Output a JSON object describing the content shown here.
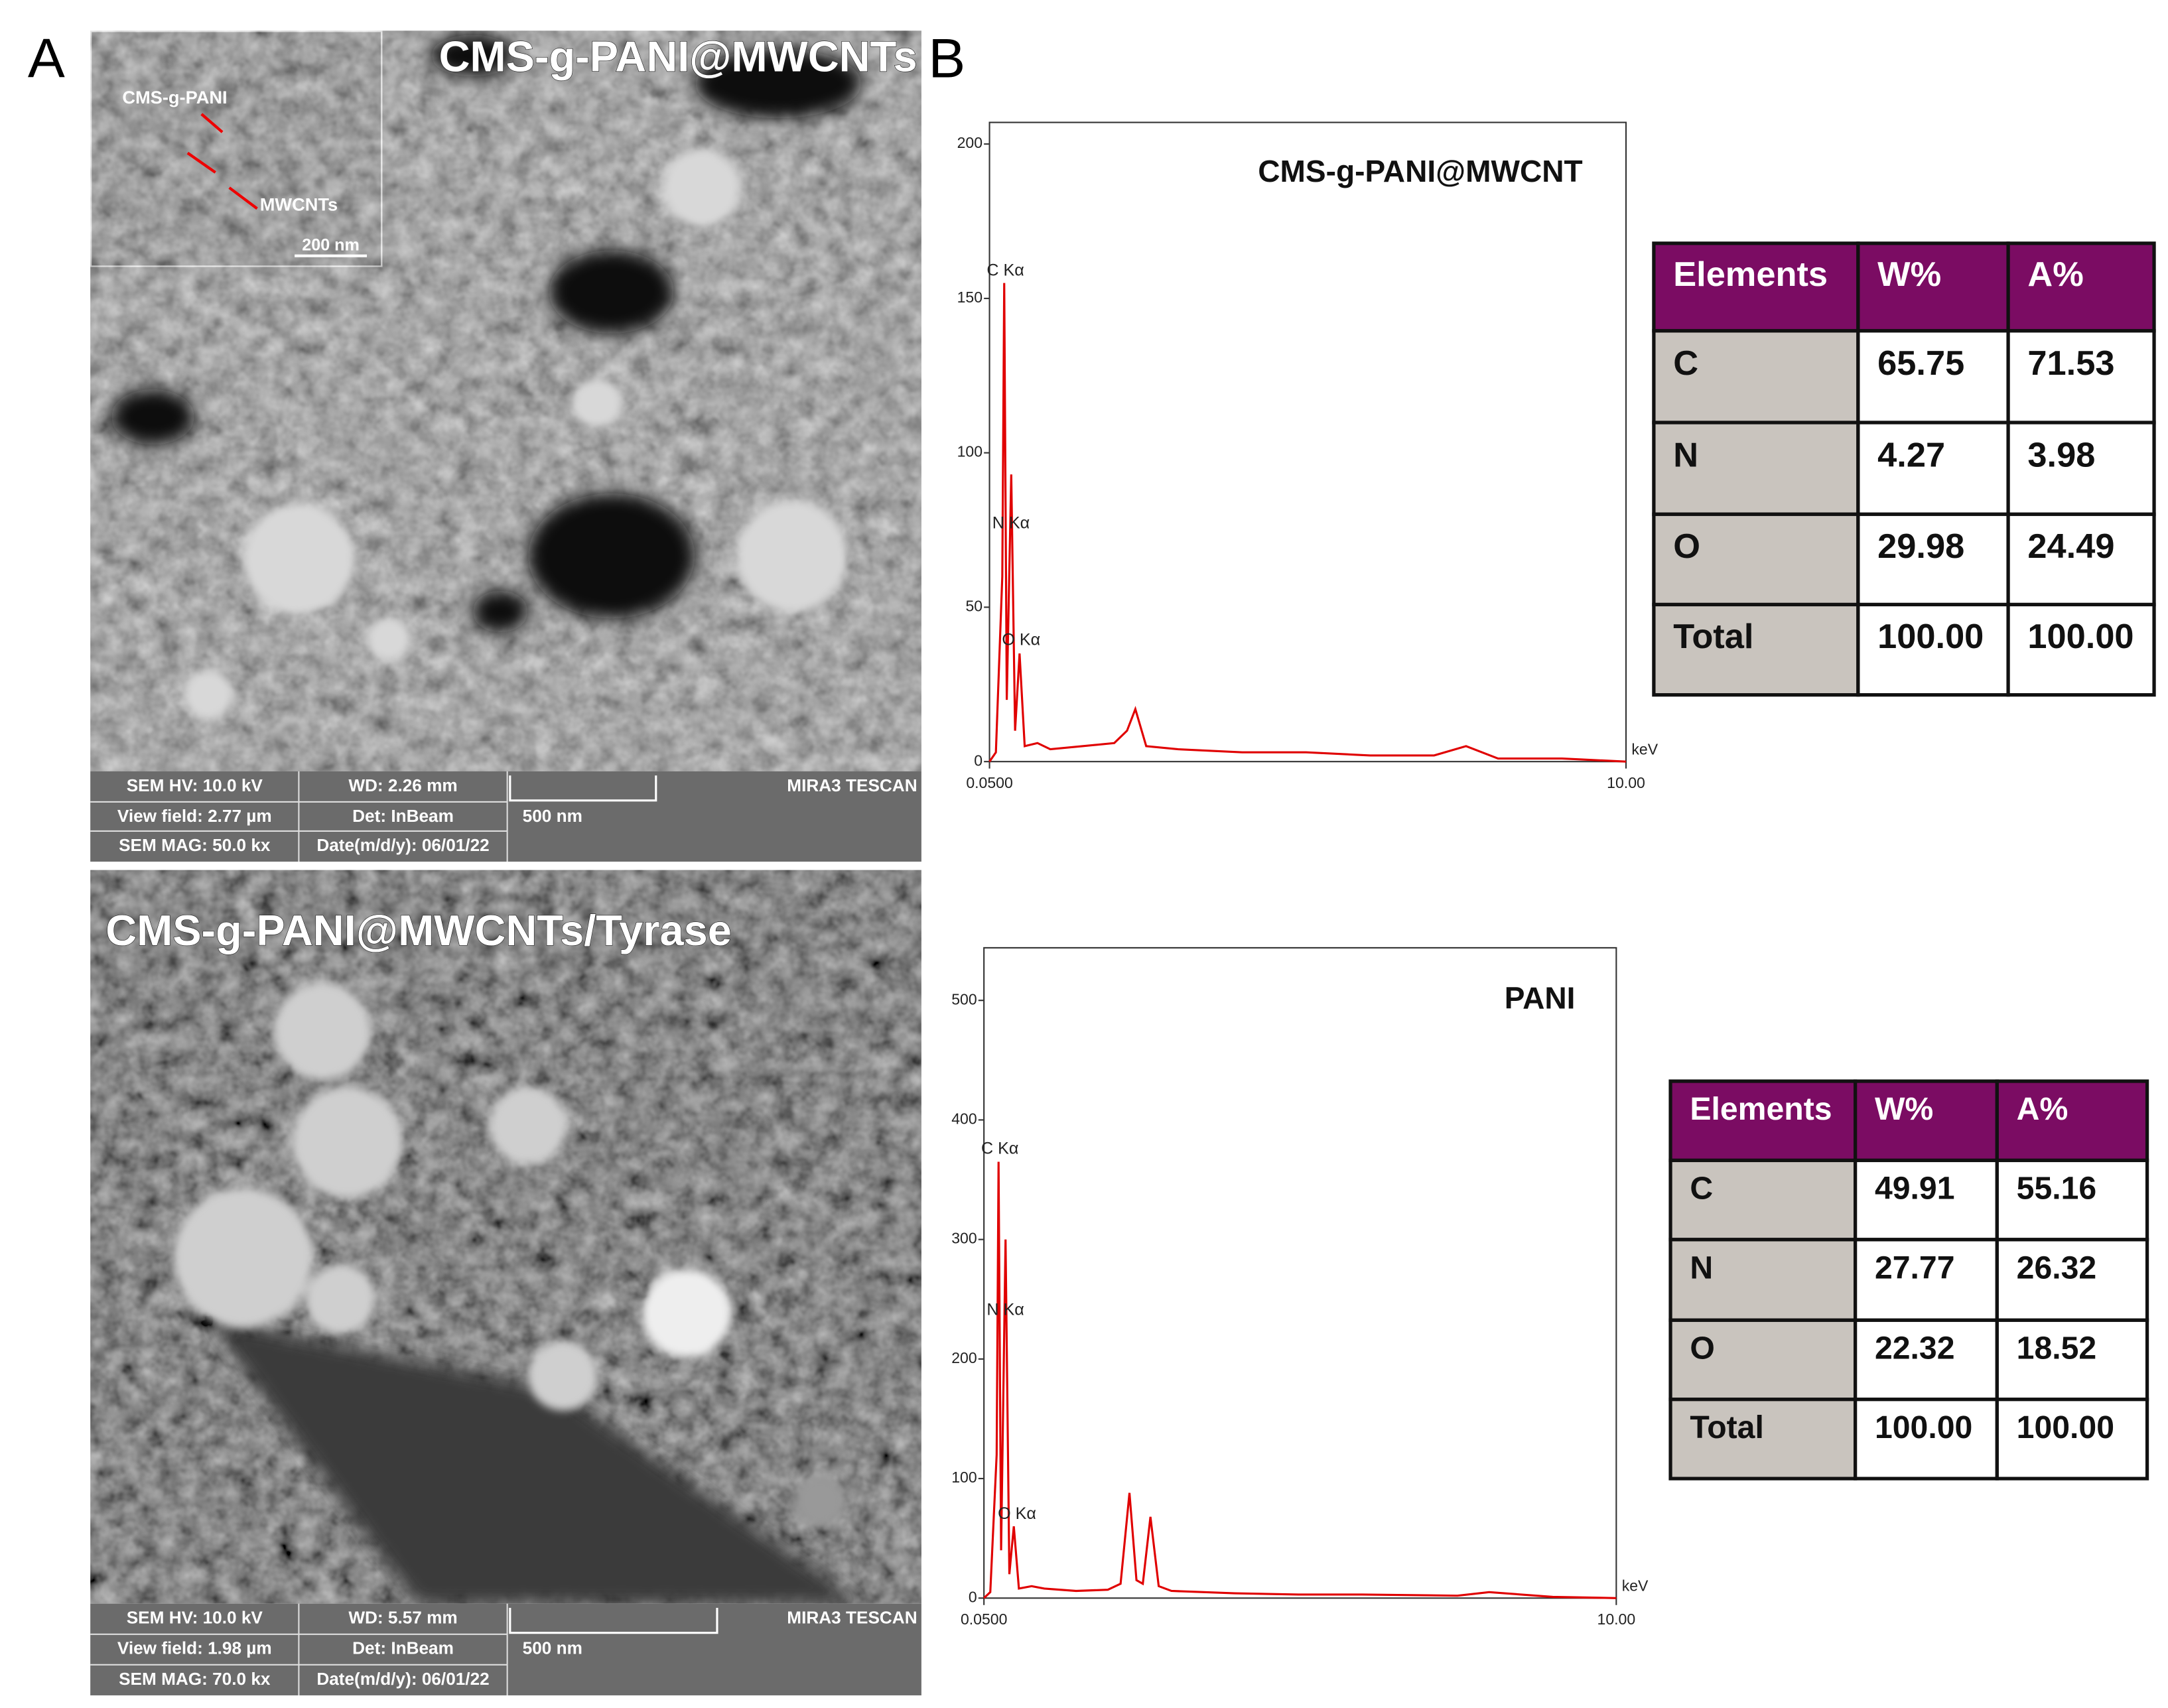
{
  "panel_labels": [
    "A",
    "B"
  ],
  "sem_images": [
    {
      "title": "CMS-g-PANI@MWCNTs",
      "inset": {
        "labels": [
          "CMS-g-PANI",
          "MWCNTs"
        ],
        "scale": "200 nm"
      },
      "info": {
        "hv": "SEM HV: 10.0 kV",
        "wd": "WD: 2.26 mm",
        "view_field": "View field: 2.77 µm",
        "det": "Det: InBeam",
        "mag": "SEM MAG: 50.0 kx",
        "date": "Date(m/d/y): 06/01/22",
        "scale": "500 nm",
        "brand": "MIRA3 TESCAN"
      }
    },
    {
      "title": "CMS-g-PANI@MWCNTs/Tyrase",
      "info": {
        "hv": "SEM HV: 10.0 kV",
        "wd": "WD: 5.57 mm",
        "view_field": "View field: 1.98 µm",
        "det": "Det: InBeam",
        "mag": "SEM MAG: 70.0 kx",
        "date": "Date(m/d/y): 06/01/22",
        "scale": "500 nm",
        "brand": "MIRA3 TESCAN"
      }
    }
  ],
  "chart_data": [
    {
      "type": "line",
      "title": "CMS-g-PANI@MWCNT",
      "x_label": "keV",
      "color": "#e00000",
      "annotations": [
        "C Kα",
        "N Kα",
        "O Kα"
      ],
      "x": [
        0.05,
        0.15,
        0.25,
        0.28,
        0.32,
        0.39,
        0.45,
        0.52,
        0.6,
        0.8,
        1.0,
        1.5,
        2.0,
        2.2,
        2.33,
        2.5,
        3.0,
        4.0,
        5.0,
        6.0,
        7.0,
        7.5,
        8.0,
        9.0,
        10.0
      ],
      "values": [
        0,
        3,
        60,
        155,
        20,
        93,
        10,
        35,
        5,
        6,
        4,
        5,
        6,
        10,
        17,
        5,
        4,
        3,
        3,
        2,
        2,
        5,
        1,
        1,
        0
      ],
      "xlim": [
        0.05,
        10
      ],
      "ylim": [
        0,
        207
      ],
      "xticks": [
        {
          "value": 0.05,
          "label": "0.0500"
        },
        {
          "value": 10,
          "label": "10.00"
        }
      ],
      "yticks": [
        0,
        50,
        100,
        150,
        200
      ]
    },
    {
      "type": "line",
      "title": "PANI",
      "x_label": "keV",
      "color": "#e00000",
      "annotations": [
        "C Kα",
        "N Kα",
        "O Kα"
      ],
      "x": [
        0.05,
        0.15,
        0.25,
        0.28,
        0.32,
        0.39,
        0.45,
        0.52,
        0.6,
        0.8,
        1.0,
        1.5,
        2.0,
        2.2,
        2.34,
        2.45,
        2.55,
        2.67,
        2.8,
        3.0,
        4.0,
        5.0,
        6.0,
        7.5,
        8.0,
        9.0,
        10.0
      ],
      "values": [
        0,
        5,
        120,
        365,
        40,
        300,
        20,
        60,
        8,
        10,
        8,
        6,
        7,
        12,
        88,
        15,
        12,
        68,
        10,
        6,
        4,
        3,
        3,
        2,
        5,
        1,
        0
      ],
      "xlim": [
        0.05,
        10
      ],
      "ylim": [
        0,
        544
      ],
      "xticks": [
        {
          "value": 0.05,
          "label": "0.0500"
        },
        {
          "value": 10,
          "label": "10.00"
        }
      ],
      "yticks": [
        0,
        100,
        200,
        300,
        400,
        500
      ]
    }
  ],
  "tables": [
    {
      "header": [
        "Elements",
        "W%",
        "A%"
      ],
      "rows": [
        [
          "C",
          "65.75",
          "71.53"
        ],
        [
          "N",
          "4.27",
          "3.98"
        ],
        [
          "O",
          "29.98",
          "24.49"
        ],
        [
          "Total",
          "100.00",
          "100.00"
        ]
      ]
    },
    {
      "header": [
        "Elements",
        "W%",
        "A%"
      ],
      "rows": [
        [
          "C",
          "49.91",
          "55.16"
        ],
        [
          "N",
          "27.77",
          "26.32"
        ],
        [
          "O",
          "22.32",
          "18.52"
        ],
        [
          "Total",
          "100.00",
          "100.00"
        ]
      ]
    }
  ]
}
